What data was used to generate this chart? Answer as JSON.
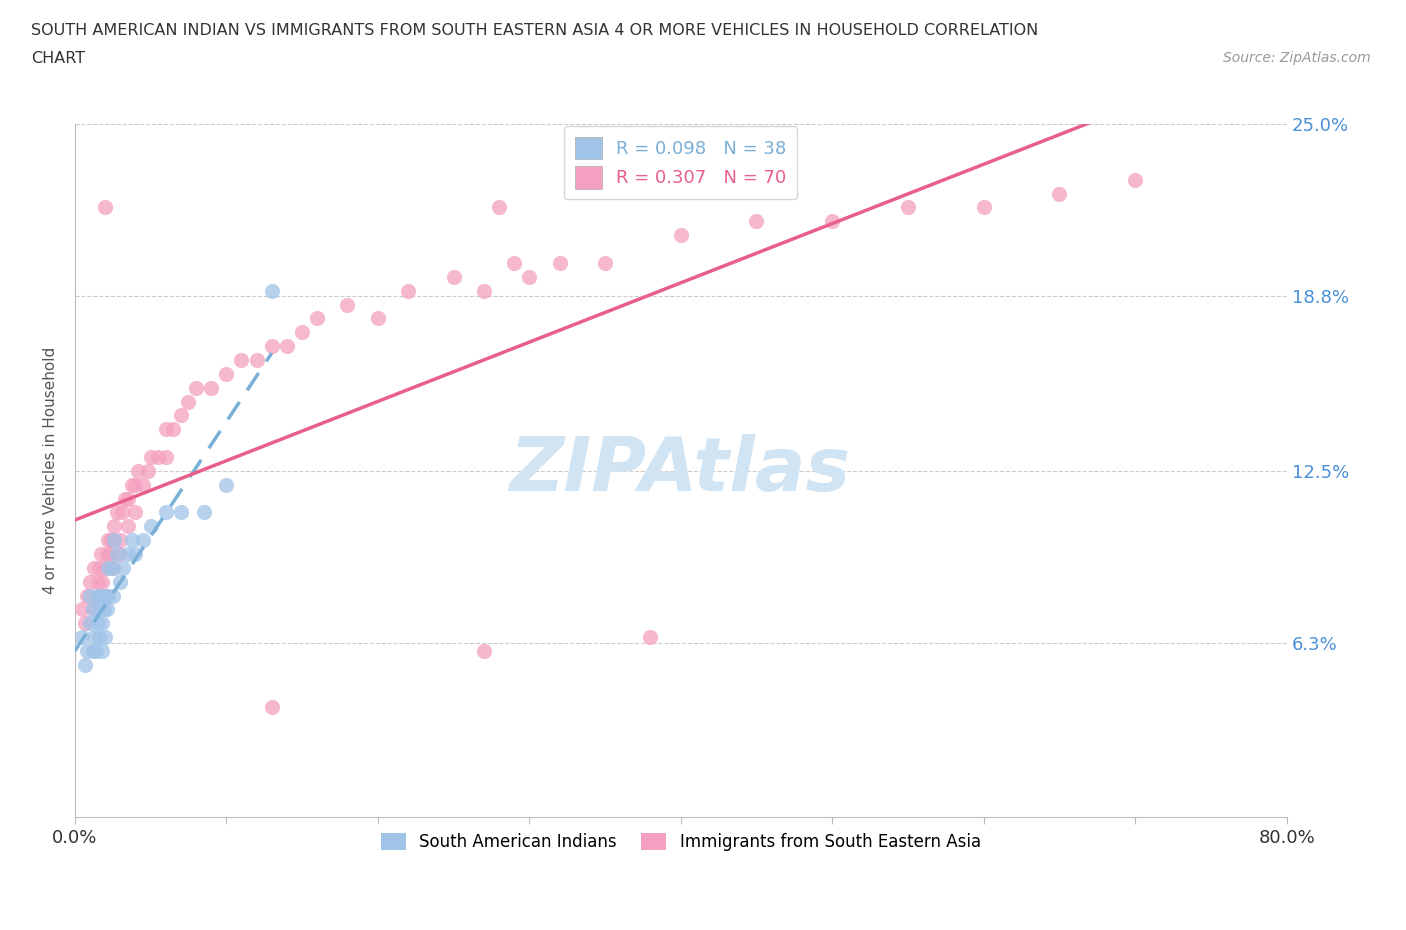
{
  "title_line1": "SOUTH AMERICAN INDIAN VS IMMIGRANTS FROM SOUTH EASTERN ASIA 4 OR MORE VEHICLES IN HOUSEHOLD CORRELATION",
  "title_line2": "CHART",
  "source_text": "Source: ZipAtlas.com",
  "ylabel": "4 or more Vehicles in Household",
  "xmin": 0.0,
  "xmax": 0.8,
  "ymin": 0.0,
  "ymax": 0.25,
  "ytick_positions": [
    0.0,
    0.063,
    0.125,
    0.188,
    0.25
  ],
  "ytick_labels": [
    "",
    "6.3%",
    "12.5%",
    "18.8%",
    "25.0%"
  ],
  "xtick_positions": [
    0.0,
    0.1,
    0.2,
    0.3,
    0.4,
    0.5,
    0.6,
    0.7,
    0.8
  ],
  "xtick_labels": [
    "0.0%",
    "",
    "",
    "",
    "",
    "",
    "",
    "",
    "80.0%"
  ],
  "gridline_y": [
    0.063,
    0.125,
    0.188,
    0.25
  ],
  "r_blue": 0.098,
  "n_blue": 38,
  "r_pink": 0.307,
  "n_pink": 70,
  "blue_color": "#a0c4e8",
  "pink_color": "#f4a0c0",
  "blue_line_color": "#7ab0d8",
  "pink_line_color": "#e8608a",
  "watermark_color": "#d0e4f4",
  "blue_scatter_x": [
    0.005,
    0.007,
    0.008,
    0.01,
    0.01,
    0.012,
    0.012,
    0.013,
    0.014,
    0.015,
    0.015,
    0.016,
    0.016,
    0.017,
    0.018,
    0.018,
    0.019,
    0.02,
    0.02,
    0.021,
    0.022,
    0.022,
    0.025,
    0.025,
    0.026,
    0.028,
    0.03,
    0.032,
    0.035,
    0.038,
    0.04,
    0.045,
    0.05,
    0.06,
    0.07,
    0.085,
    0.1,
    0.13
  ],
  "blue_scatter_y": [
    0.065,
    0.055,
    0.06,
    0.07,
    0.08,
    0.06,
    0.075,
    0.065,
    0.06,
    0.07,
    0.08,
    0.065,
    0.075,
    0.08,
    0.06,
    0.07,
    0.075,
    0.065,
    0.08,
    0.075,
    0.08,
    0.09,
    0.08,
    0.09,
    0.1,
    0.095,
    0.085,
    0.09,
    0.095,
    0.1,
    0.095,
    0.1,
    0.105,
    0.11,
    0.11,
    0.11,
    0.12,
    0.19
  ],
  "pink_scatter_x": [
    0.005,
    0.007,
    0.008,
    0.01,
    0.012,
    0.013,
    0.015,
    0.015,
    0.016,
    0.017,
    0.018,
    0.02,
    0.02,
    0.021,
    0.022,
    0.023,
    0.024,
    0.025,
    0.025,
    0.026,
    0.028,
    0.03,
    0.03,
    0.031,
    0.033,
    0.035,
    0.035,
    0.038,
    0.04,
    0.04,
    0.042,
    0.045,
    0.048,
    0.05,
    0.055,
    0.06,
    0.06,
    0.065,
    0.07,
    0.075,
    0.08,
    0.09,
    0.1,
    0.11,
    0.12,
    0.13,
    0.14,
    0.15,
    0.16,
    0.18,
    0.2,
    0.22,
    0.25,
    0.27,
    0.29,
    0.3,
    0.32,
    0.35,
    0.4,
    0.45,
    0.5,
    0.55,
    0.6,
    0.65,
    0.7,
    0.28,
    0.13,
    0.27,
    0.38,
    0.02
  ],
  "pink_scatter_y": [
    0.075,
    0.07,
    0.08,
    0.085,
    0.075,
    0.09,
    0.08,
    0.085,
    0.09,
    0.095,
    0.085,
    0.08,
    0.09,
    0.095,
    0.1,
    0.095,
    0.1,
    0.09,
    0.1,
    0.105,
    0.11,
    0.095,
    0.1,
    0.11,
    0.115,
    0.105,
    0.115,
    0.12,
    0.11,
    0.12,
    0.125,
    0.12,
    0.125,
    0.13,
    0.13,
    0.13,
    0.14,
    0.14,
    0.145,
    0.15,
    0.155,
    0.155,
    0.16,
    0.165,
    0.165,
    0.17,
    0.17,
    0.175,
    0.18,
    0.185,
    0.18,
    0.19,
    0.195,
    0.19,
    0.2,
    0.195,
    0.2,
    0.2,
    0.21,
    0.215,
    0.215,
    0.22,
    0.22,
    0.225,
    0.23,
    0.22,
    0.04,
    0.06,
    0.065,
    0.22
  ]
}
